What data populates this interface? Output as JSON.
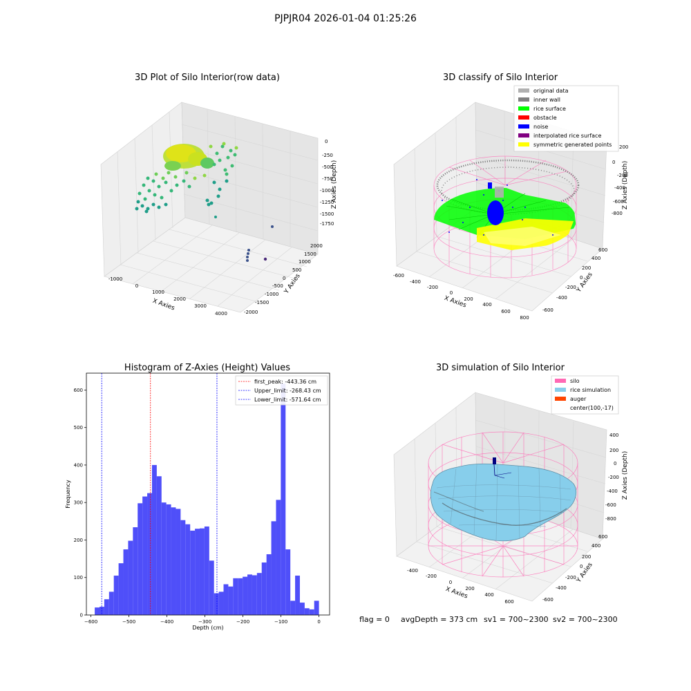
{
  "suptitle": "PJPJR04 2026-01-04 01:25:26",
  "footer": {
    "flag": "flag = 0",
    "avg_depth": "avgDepth = 373 cm",
    "sv1": "sv1 = 700~2300",
    "sv2": "sv2 = 700~2300"
  },
  "colors": {
    "original_data": "#b0b0b0",
    "inner_wall": "#808080",
    "rice_surface": "#00ff00",
    "obstacle": "#ff0000",
    "noise": "#0000ff",
    "interpolated_rice_surface": "#800080",
    "symmetric_generated_points": "#ffff00",
    "silo": "#ff69b4",
    "rice_simulation": "#87ceeb",
    "auger": "#ff4500",
    "histogram_bar": "#4f4ff9"
  },
  "chart_data": [
    {
      "type": "scatter",
      "projection": "3d",
      "title": "3D Plot of Silo Interior(row data)",
      "xlabel": "X Axies",
      "ylabel": "Y Axies",
      "zlabel": "Z Axies (Depth)",
      "xticks": [
        "-1000",
        "0",
        "1000",
        "2000",
        "3000",
        "4000"
      ],
      "yticks": [
        "-2000",
        "-1500",
        "-1000",
        "-500",
        "0",
        "500",
        "1000",
        "1500",
        "2000"
      ],
      "zticks": [
        "0",
        "-250",
        "-500",
        "-750",
        "-1000",
        "-1250",
        "-1500",
        "-1750"
      ],
      "grid": true
    },
    {
      "type": "scatter",
      "projection": "3d",
      "title": "3D classify of Silo Interior",
      "xlabel": "X Axies",
      "ylabel": "Y Axies",
      "zlabel": "Z Axies (Depth)",
      "xticks": [
        "-600",
        "-400",
        "-200",
        "0",
        "200",
        "400",
        "600",
        "800"
      ],
      "yticks": [
        "-600",
        "-400",
        "-200",
        "0",
        "200",
        "400",
        "600"
      ],
      "zticks": [
        "200",
        "0",
        "-200",
        "-400",
        "-600",
        "-800"
      ],
      "legend": [
        {
          "label": "original data",
          "color": "#b0b0b0"
        },
        {
          "label": "inner wall",
          "color": "#808080"
        },
        {
          "label": "rice surface",
          "color": "#00ff00"
        },
        {
          "label": "obstacle",
          "color": "#ff0000"
        },
        {
          "label": "noise",
          "color": "#0000ff"
        },
        {
          "label": "interpolated rice surface",
          "color": "#800080"
        },
        {
          "label": "symmetric generated points",
          "color": "#ffff00"
        }
      ],
      "legend_position": "top-right",
      "grid": true
    },
    {
      "type": "bar",
      "title": "Histogram of Z-Axies (Height) Values",
      "xlabel": "Depth (cm)",
      "ylabel": "Frequency",
      "xlim": [
        -612,
        28
      ],
      "ylim": [
        0,
        645
      ],
      "xticks": [
        -600,
        -500,
        -400,
        -300,
        -200,
        -100,
        0
      ],
      "yticks": [
        0,
        100,
        200,
        300,
        400,
        500,
        600
      ],
      "bin_width": 10,
      "bin_left_edges": [
        -590,
        -580,
        -570,
        -560,
        -550,
        -540,
        -530,
        -520,
        -510,
        -500,
        -490,
        -480,
        -470,
        -460,
        -450,
        -440,
        -430,
        -420,
        -410,
        -400,
        -390,
        -380,
        -370,
        -360,
        -350,
        -340,
        -330,
        -320,
        -310,
        -300,
        -290,
        -280,
        -270,
        -260,
        -250,
        -240,
        -230,
        -220,
        -210,
        -200,
        -190,
        -180,
        -170,
        -160,
        -150,
        -140,
        -130,
        -120,
        -110,
        -100,
        -90,
        -80,
        -70,
        -60,
        -50,
        -40,
        -30,
        -20,
        -10
      ],
      "values": [
        20,
        22,
        42,
        62,
        105,
        138,
        175,
        198,
        234,
        298,
        316,
        325,
        400,
        370,
        300,
        295,
        287,
        283,
        253,
        242,
        225,
        230,
        231,
        236,
        145,
        58,
        62,
        82,
        76,
        98,
        98,
        102,
        108,
        106,
        112,
        140,
        162,
        250,
        307,
        617,
        175,
        38,
        105,
        33,
        18,
        15,
        38
      ],
      "bars_start_index": 0,
      "vlines": [
        {
          "label": "first_peak: -443.36 cm",
          "x": -443.36,
          "color": "#ff0000"
        },
        {
          "label": "Upper_limit: -268.43 cm",
          "x": -268.43,
          "color": "#0000ff"
        },
        {
          "label": "Lower_limit: -571.64 cm",
          "x": -571.64,
          "color": "#0000ff"
        }
      ],
      "legend_position": "top-right"
    },
    {
      "type": "surface",
      "projection": "3d",
      "title": "3D simulation of Silo Interior",
      "xlabel": "X Axies",
      "ylabel": "Y Axies",
      "zlabel": "Z Axies (Depth)",
      "xticks": [
        "-400",
        "-200",
        "0",
        "200",
        "400",
        "600"
      ],
      "yticks": [
        "-600",
        "-400",
        "-200",
        "0",
        "200",
        "400",
        "600"
      ],
      "zticks": [
        "400",
        "200",
        "0",
        "-200",
        "-400",
        "-600",
        "-800"
      ],
      "legend": [
        {
          "label": "silo",
          "color": "#ff69b4"
        },
        {
          "label": "rice simulation",
          "color": "#87ceeb"
        },
        {
          "label": "auger",
          "color": "#ff4500"
        },
        {
          "label": "center(100,-17)",
          "color": ""
        }
      ],
      "legend_position": "top-right",
      "grid": true
    }
  ]
}
